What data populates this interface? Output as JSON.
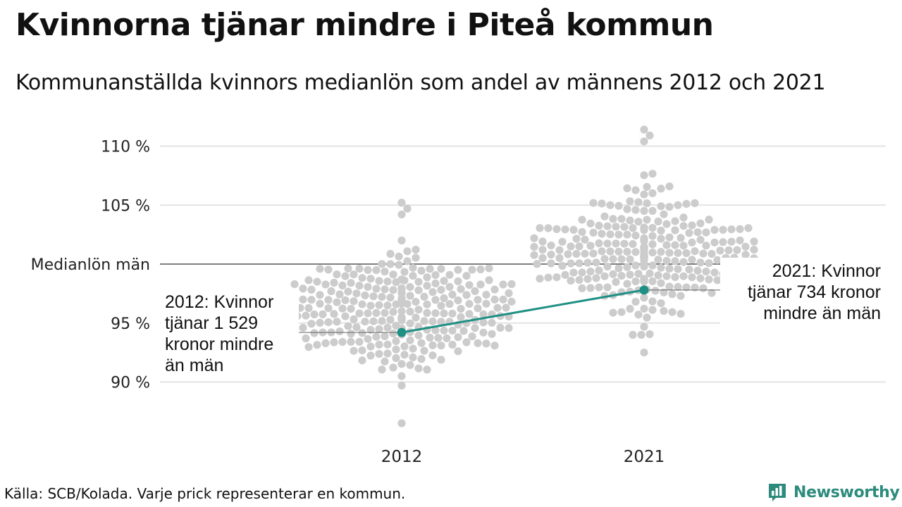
{
  "title": "Kvinnorna tjänar mindre i Piteå kommun",
  "subtitle": "Kommunanställda kvinnors medianlön som andel av männens 2012 och 2021",
  "source": "Källa: SCB/Kolada. Varje prick representerar en kommun.",
  "brand": {
    "name": "Newsworthy",
    "icon": "newsworthy-logo-icon",
    "color": "#2c8b7c"
  },
  "colors": {
    "dots": "#cccccc",
    "highlight": "#1f9084",
    "grid": "#e3e3e3",
    "reference": "#333333"
  },
  "chart_data": {
    "type": "scatter",
    "subtype": "beeswarm",
    "categories": [
      "2012",
      "2021"
    ],
    "ylim": [
      85.5,
      111.5
    ],
    "y_ticks": [
      {
        "value": 110,
        "label": "110 %"
      },
      {
        "value": 105,
        "label": "105 %"
      },
      {
        "value": 100,
        "label": "Medianlön män"
      },
      {
        "value": 95,
        "label": "95 %"
      },
      {
        "value": 90,
        "label": "90 %"
      }
    ],
    "reference_line": {
      "value": 100,
      "label": "Medianlön män"
    },
    "grid": true,
    "distribution": [
      {
        "year": "2012",
        "median": 96.0,
        "count": 290,
        "min": 86.5,
        "max": 105.2
      },
      {
        "year": "2021",
        "median": 101.0,
        "count": 290,
        "min": 92.5,
        "max": 111.4
      }
    ],
    "highlight": {
      "name": "Piteå",
      "points": [
        {
          "x": "2012",
          "y": 94.2
        },
        {
          "x": "2021",
          "y": 97.8
        }
      ]
    },
    "annotations": [
      {
        "x": "2012",
        "y": 94.2,
        "text_lines": [
          "2012: Kvinnor",
          "tjänar 1 529",
          "kronor mindre",
          "än män"
        ]
      },
      {
        "x": "2021",
        "y": 97.8,
        "text_lines": [
          "2021: Kvinnor",
          "tjänar 734 kronor",
          "mindre än män"
        ]
      }
    ]
  }
}
